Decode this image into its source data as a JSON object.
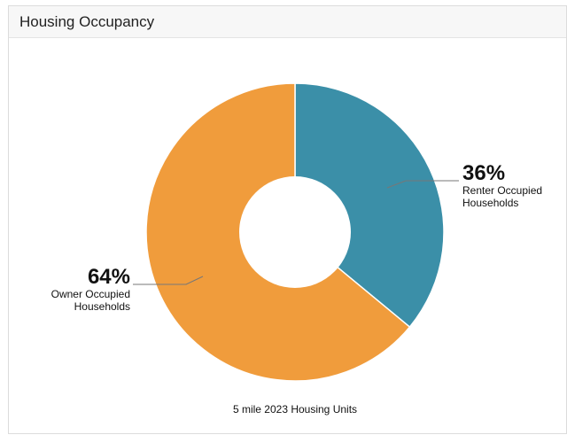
{
  "panel": {
    "title": "Housing Occupancy"
  },
  "chart_data": {
    "type": "pie",
    "style": "donut",
    "title": "Housing Occupancy",
    "caption": "5 mile 2023 Housing Units",
    "slices": [
      {
        "pct_label": "36%",
        "label_line1": "Renter Occupied",
        "label_line2": "Households",
        "value": 36,
        "color": "#3b8fa8"
      },
      {
        "pct_label": "64%",
        "label_line1": "Owner Occupied",
        "label_line2": "Households",
        "value": 64,
        "color": "#f09c3c"
      }
    ]
  }
}
